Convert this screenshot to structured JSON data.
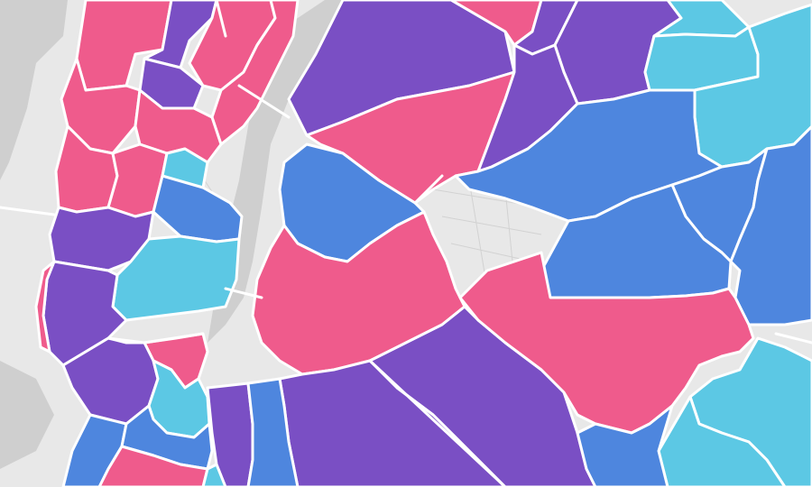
{
  "palette": {
    "pink": "#ef5b8c",
    "purple": "#7a4fc4",
    "blue": "#4e86de",
    "cyan": "#5cc8e4",
    "land": "#e8e8e8",
    "water": "#cfcfcf",
    "border": "#ffffff"
  },
  "legend_categories": [
    "pink",
    "purple",
    "blue",
    "cyan"
  ]
}
